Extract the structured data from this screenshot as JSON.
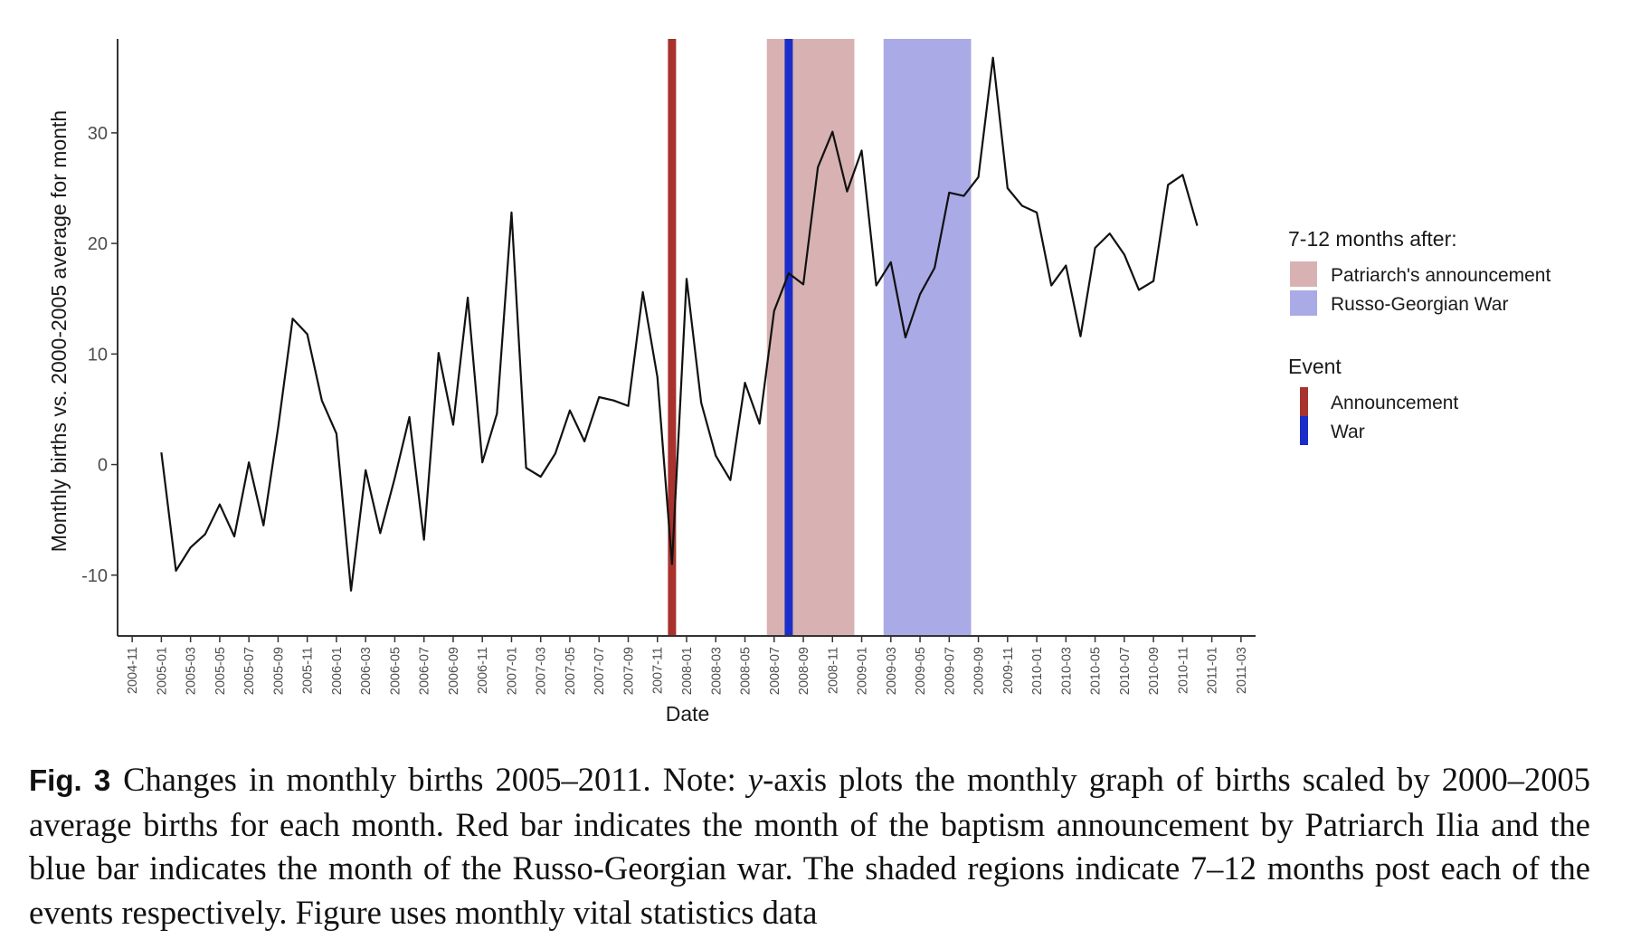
{
  "chart_data": {
    "type": "line",
    "xlabel": "Date",
    "ylabel": "Monthly births vs. 2000-2005 average for month",
    "ylim": [
      -15.5,
      38.5
    ],
    "yticks": [
      -10,
      0,
      10,
      20,
      30
    ],
    "xlim": [
      "2004-10",
      "2011-04"
    ],
    "xticks": [
      "2004-11",
      "2005-01",
      "2005-03",
      "2005-05",
      "2005-07",
      "2005-09",
      "2005-11",
      "2006-01",
      "2006-03",
      "2006-05",
      "2006-07",
      "2006-09",
      "2006-11",
      "2007-01",
      "2007-03",
      "2007-05",
      "2007-07",
      "2007-09",
      "2007-11",
      "2008-01",
      "2008-03",
      "2008-05",
      "2008-07",
      "2008-09",
      "2008-11",
      "2009-01",
      "2009-03",
      "2009-05",
      "2009-07",
      "2009-09",
      "2009-11",
      "2010-01",
      "2010-03",
      "2010-05",
      "2010-07",
      "2010-09",
      "2010-11",
      "2011-01",
      "2011-03"
    ],
    "grid": false,
    "legend_position": "right",
    "series": [
      {
        "x": [
          "2005-01",
          "2005-02",
          "2005-03",
          "2005-04",
          "2005-05",
          "2005-06",
          "2005-07",
          "2005-08",
          "2005-09",
          "2005-10",
          "2005-11",
          "2005-12",
          "2006-01",
          "2006-02",
          "2006-03",
          "2006-04",
          "2006-05",
          "2006-06",
          "2006-07",
          "2006-08",
          "2006-09",
          "2006-10",
          "2006-11",
          "2006-12",
          "2007-01",
          "2007-02",
          "2007-03",
          "2007-04",
          "2007-05",
          "2007-06",
          "2007-07",
          "2007-08",
          "2007-09",
          "2007-10",
          "2007-11",
          "2007-12",
          "2008-01",
          "2008-02",
          "2008-03",
          "2008-04",
          "2008-05",
          "2008-06",
          "2008-07",
          "2008-08",
          "2008-09",
          "2008-10",
          "2008-11",
          "2008-12",
          "2009-01",
          "2009-02",
          "2009-03",
          "2009-04",
          "2009-05",
          "2009-06",
          "2009-07",
          "2009-08",
          "2009-09",
          "2009-10",
          "2009-11",
          "2009-12",
          "2010-01",
          "2010-02",
          "2010-03",
          "2010-04",
          "2010-05",
          "2010-06",
          "2010-07",
          "2010-08",
          "2010-09",
          "2010-10",
          "2010-11",
          "2010-12"
        ],
        "values": [
          1.1,
          -9.6,
          -7.5,
          -6.3,
          -3.6,
          -6.5,
          0.2,
          -5.5,
          3.3,
          13.2,
          11.8,
          5.8,
          2.8,
          -11.4,
          -0.5,
          -6.2,
          -1.2,
          4.3,
          -6.8,
          10.1,
          3.6,
          15.1,
          0.2,
          4.6,
          22.8,
          -0.3,
          -1.1,
          1.0,
          4.9,
          2.1,
          6.1,
          5.8,
          5.3,
          15.6,
          7.9,
          -9.0,
          16.8,
          5.6,
          0.8,
          -1.4,
          7.4,
          3.7,
          13.9,
          17.3,
          16.3,
          26.9,
          30.1,
          24.7,
          28.4,
          16.2,
          18.3,
          11.5,
          15.4,
          17.8,
          24.6,
          24.3,
          26.0,
          36.8,
          25.0,
          23.4,
          22.8,
          16.2,
          18.0,
          11.6,
          19.6,
          20.9,
          19.0,
          15.8,
          16.6,
          25.3,
          26.2,
          21.6
        ]
      }
    ],
    "events": [
      {
        "name": "Announcement",
        "date": "2007-12",
        "color": "#a8322d"
      },
      {
        "name": "War",
        "date": "2008-08",
        "color": "#1a2dc8"
      }
    ],
    "shaded_regions": [
      {
        "name": "Patriarch's announcement",
        "start": "2008-07",
        "end": "2008-12",
        "color": "#d8b2b2"
      },
      {
        "name": "Russo-Georgian War",
        "start": "2009-03",
        "end": "2009-08",
        "color": "#aaaae6"
      }
    ],
    "legend": {
      "shaded_title": "7-12 months after:",
      "shaded_items": [
        "Patriarch's announcement",
        "Russo-Georgian War"
      ],
      "event_title": "Event",
      "event_items": [
        "Announcement",
        "War"
      ]
    }
  },
  "caption": {
    "label": "Fig. 3",
    "text_before": "Changes in monthly births 2005–2011. Note: ",
    "text_italic": "y",
    "text_after": "-axis plots the monthly graph of births scaled by 2000–2005 average births for each month. Red bar indicates the month of the baptism announcement by Patriarch Ilia and the blue bar indicates the month of the Russo-Georgian war. The shaded regions indicate 7–12 months post each of the events respectively. Figure uses monthly vital statistics data"
  },
  "colors": {
    "line": "#111111",
    "axis": "#333333",
    "announcement": "#a8322d",
    "war": "#1a2dc8",
    "announcement_shade": "#d8b2b2",
    "war_shade": "#aaaae6"
  }
}
